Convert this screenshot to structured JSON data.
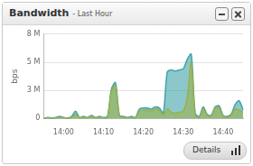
{
  "chart_data": {
    "type": "line",
    "y_label": "bps",
    "categories": [
      null,
      null,
      null,
      null,
      null,
      "14:00",
      null,
      null,
      null,
      null,
      null,
      null,
      null,
      null,
      null,
      "14:10",
      null,
      null,
      null,
      null,
      null,
      null,
      null,
      null,
      null,
      "14:20",
      null,
      null,
      null,
      null,
      null,
      null,
      null,
      null,
      null,
      "14:30",
      null,
      null,
      null,
      null,
      null,
      null,
      null,
      null,
      null,
      "14:40",
      null,
      null,
      null,
      null,
      null
    ],
    "series": [
      {
        "color": "#9bb04a",
        "values": [
          0,
          50000,
          0,
          50000,
          100000,
          50000,
          0,
          100000,
          400000,
          50000,
          100000,
          50000,
          200000,
          50000,
          100000,
          50000,
          100000,
          2600000,
          3100000,
          200000,
          100000,
          50000,
          100000,
          50000,
          700000,
          800000,
          800000,
          700000,
          900000,
          800000,
          300000,
          900000,
          600000,
          500000,
          600000,
          700000,
          2000000,
          5300000,
          300000,
          100000,
          900000,
          300000,
          200000,
          1000000,
          1000000,
          200000,
          100000,
          300000,
          900000,
          800000,
          600000
        ]
      },
      {
        "color": "#3fa3a8",
        "values": [
          0,
          100000,
          50000,
          100000,
          200000,
          100000,
          50000,
          200000,
          700000,
          100000,
          200000,
          100000,
          300000,
          100000,
          200000,
          100000,
          200000,
          2800000,
          3400000,
          300000,
          200000,
          100000,
          200000,
          100000,
          900000,
          1000000,
          1000000,
          900000,
          1100000,
          1000000,
          500000,
          4400000,
          4600000,
          4500000,
          4600000,
          4700000,
          5600000,
          6100000,
          500000,
          200000,
          1100000,
          400000,
          300000,
          1100000,
          1200000,
          300000,
          200000,
          400000,
          1300000,
          1700000,
          800000
        ]
      }
    ],
    "ylim": [
      0,
      8000000
    ],
    "yticks": [
      0,
      {
        "value": 2666667,
        "label": "3 M"
      },
      {
        "value": 5333333,
        "label": "5 M"
      },
      {
        "value": 8000000,
        "label": "8 M"
      }
    ],
    "grid": true
  },
  "widget": {
    "title": "Bandwidth",
    "subtitle": "- Last Hour",
    "button": "Details"
  }
}
